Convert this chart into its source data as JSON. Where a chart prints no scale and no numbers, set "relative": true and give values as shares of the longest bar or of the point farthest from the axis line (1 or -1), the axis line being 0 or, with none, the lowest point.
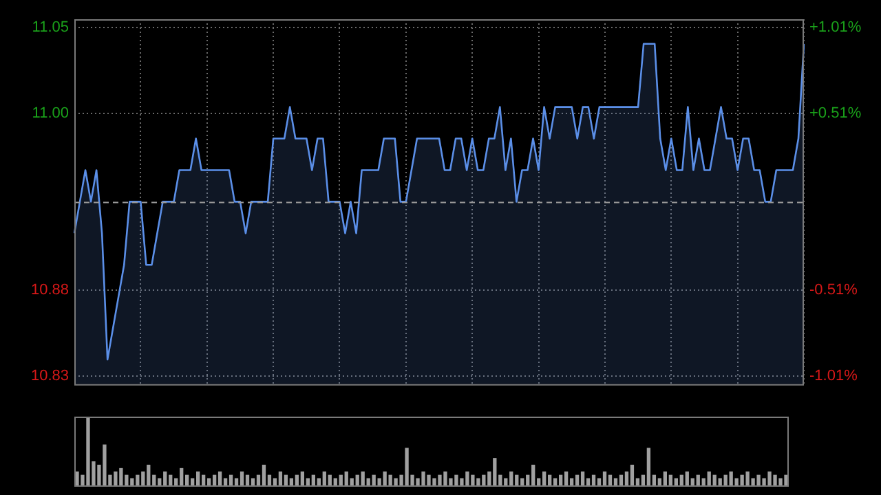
{
  "chart_data": [
    {
      "type": "area",
      "categories": [
        null,
        null,
        null,
        null,
        null,
        null,
        null,
        null,
        null,
        null,
        null,
        null,
        null,
        null,
        null,
        null,
        null,
        null,
        null,
        null,
        null,
        null,
        null,
        null,
        null,
        null,
        null,
        null,
        null,
        null,
        null,
        null,
        null,
        null,
        null,
        null,
        null,
        null,
        null,
        null,
        null,
        null,
        null,
        null,
        null,
        null,
        null,
        null,
        null,
        null,
        null,
        null,
        null,
        null,
        null,
        null,
        null,
        null,
        null,
        null,
        null,
        null,
        null,
        null,
        null,
        null,
        null,
        null,
        null,
        null,
        null,
        null,
        null,
        null,
        null,
        null,
        null,
        null,
        null,
        null,
        null,
        null,
        null,
        null,
        null,
        null,
        null,
        null,
        null,
        null,
        null,
        null,
        null,
        null,
        null,
        null,
        null,
        null,
        null,
        null,
        null,
        null,
        null,
        null,
        null,
        null,
        null,
        null,
        null,
        null,
        null,
        null,
        null,
        null,
        null,
        null,
        null,
        null,
        null,
        null,
        null,
        null,
        null,
        null,
        null,
        null,
        null,
        null,
        null,
        null,
        null,
        null,
        null
      ],
      "series": [
        {
          "color": "#5b8fe8",
          "values": [
            10.92,
            10.94,
            10.96,
            10.94,
            10.96,
            10.92,
            10.84,
            10.86,
            10.88,
            10.9,
            10.94,
            10.94,
            10.94,
            10.9,
            10.9,
            10.92,
            10.94,
            10.94,
            10.94,
            10.96,
            10.96,
            10.96,
            10.98,
            10.96,
            10.96,
            10.96,
            10.96,
            10.96,
            10.96,
            10.94,
            10.94,
            10.92,
            10.94,
            10.94,
            10.94,
            10.94,
            10.98,
            10.98,
            10.98,
            11.0,
            10.98,
            10.98,
            10.98,
            10.96,
            10.98,
            10.98,
            10.94,
            10.94,
            10.94,
            10.92,
            10.94,
            10.92,
            10.96,
            10.96,
            10.96,
            10.96,
            10.98,
            10.98,
            10.98,
            10.94,
            10.94,
            10.96,
            10.98,
            10.98,
            10.98,
            10.98,
            10.98,
            10.96,
            10.96,
            10.98,
            10.98,
            10.96,
            10.98,
            10.96,
            10.96,
            10.98,
            10.98,
            11.0,
            10.96,
            10.98,
            10.94,
            10.96,
            10.96,
            10.98,
            10.96,
            11.0,
            10.98,
            11.0,
            11.0,
            11.0,
            11.0,
            10.98,
            11.0,
            11.0,
            10.98,
            11.0,
            11.0,
            11.0,
            11.0,
            11.0,
            11.0,
            11.0,
            11.0,
            11.04,
            11.04,
            11.04,
            10.98,
            10.96,
            10.98,
            10.96,
            10.96,
            11.0,
            10.96,
            10.98,
            10.96,
            10.96,
            10.98,
            11.0,
            10.98,
            10.98,
            10.96,
            10.98,
            10.98,
            10.96,
            10.96,
            10.94,
            10.94,
            10.96,
            10.96,
            10.96,
            10.96,
            10.98,
            11.04
          ]
        }
      ],
      "ylim": [
        10.8244,
        11.0556
      ],
      "yticks": [
        {
          "value": 11.0505,
          "label": "11.05"
        },
        {
          "value": 10.9958,
          "label": "11.00"
        },
        {
          "value": 10.8842,
          "label": "10.88"
        },
        {
          "value": 10.8295,
          "label": "10.83"
        }
      ],
      "y2lim": [
        -1.057,
        1.057
      ],
      "y2ticks": [
        {
          "value": 1.01,
          "label": "+1.01%"
        },
        {
          "value": 0.51,
          "label": "+0.51%"
        },
        {
          "value": -0.51,
          "label": "-0.51%"
        },
        {
          "value": -1.01,
          "label": "-1.01%"
        }
      ],
      "ref_lines": [
        {
          "axis": "y",
          "value": 10.94,
          "color": "#9a9a9a",
          "line_style": "dashed"
        }
      ],
      "grid": true,
      "marker": "none",
      "line_style": "solid"
    },
    {
      "type": "bar",
      "relative": true,
      "categories": [
        null,
        null,
        null,
        null,
        null,
        null,
        null,
        null,
        null,
        null,
        null,
        null,
        null,
        null,
        null,
        null,
        null,
        null,
        null,
        null,
        null,
        null,
        null,
        null,
        null,
        null,
        null,
        null,
        null,
        null,
        null,
        null,
        null,
        null,
        null,
        null,
        null,
        null,
        null,
        null,
        null,
        null,
        null,
        null,
        null,
        null,
        null,
        null,
        null,
        null,
        null,
        null,
        null,
        null,
        null,
        null,
        null,
        null,
        null,
        null,
        null,
        null,
        null,
        null,
        null,
        null,
        null,
        null,
        null,
        null,
        null,
        null,
        null,
        null,
        null,
        null,
        null,
        null,
        null,
        null,
        null,
        null,
        null,
        null,
        null,
        null,
        null,
        null,
        null,
        null,
        null,
        null,
        null,
        null,
        null,
        null,
        null,
        null,
        null,
        null,
        null,
        null,
        null,
        null,
        null,
        null,
        null,
        null,
        null,
        null,
        null,
        null,
        null,
        null,
        null,
        null,
        null,
        null,
        null,
        null,
        null,
        null,
        null,
        null,
        null,
        null,
        null,
        null,
        null,
        null
      ],
      "color": "#a0a0a0",
      "values": [
        0.2,
        0.15,
        1,
        0.35,
        0.3,
        0.6,
        0.15,
        0.2,
        0.25,
        0.15,
        0.1,
        0.15,
        0.2,
        0.3,
        0.15,
        0.1,
        0.2,
        0.15,
        0.1,
        0.25,
        0.15,
        0.1,
        0.2,
        0.15,
        0.1,
        0.15,
        0.2,
        0.1,
        0.15,
        0.1,
        0.2,
        0.15,
        0.1,
        0.15,
        0.3,
        0.15,
        0.1,
        0.2,
        0.15,
        0.1,
        0.15,
        0.2,
        0.1,
        0.15,
        0.1,
        0.2,
        0.15,
        0.1,
        0.15,
        0.2,
        0.1,
        0.15,
        0.2,
        0.1,
        0.15,
        0.1,
        0.2,
        0.15,
        0.1,
        0.15,
        0.55,
        0.15,
        0.1,
        0.2,
        0.15,
        0.1,
        0.15,
        0.2,
        0.1,
        0.15,
        0.1,
        0.2,
        0.15,
        0.1,
        0.15,
        0.2,
        0.4,
        0.15,
        0.1,
        0.2,
        0.15,
        0.1,
        0.15,
        0.3,
        0.1,
        0.2,
        0.15,
        0.1,
        0.15,
        0.2,
        0.1,
        0.15,
        0.2,
        0.1,
        0.15,
        0.1,
        0.2,
        0.15,
        0.1,
        0.15,
        0.2,
        0.3,
        0.1,
        0.15,
        0.55,
        0.15,
        0.1,
        0.2,
        0.15,
        0.1,
        0.15,
        0.2,
        0.1,
        0.15,
        0.1,
        0.2,
        0.15,
        0.1,
        0.15,
        0.2,
        0.1,
        0.15,
        0.2,
        0.1,
        0.15,
        0.1,
        0.2,
        0.15,
        0.1,
        0.15
      ]
    }
  ]
}
